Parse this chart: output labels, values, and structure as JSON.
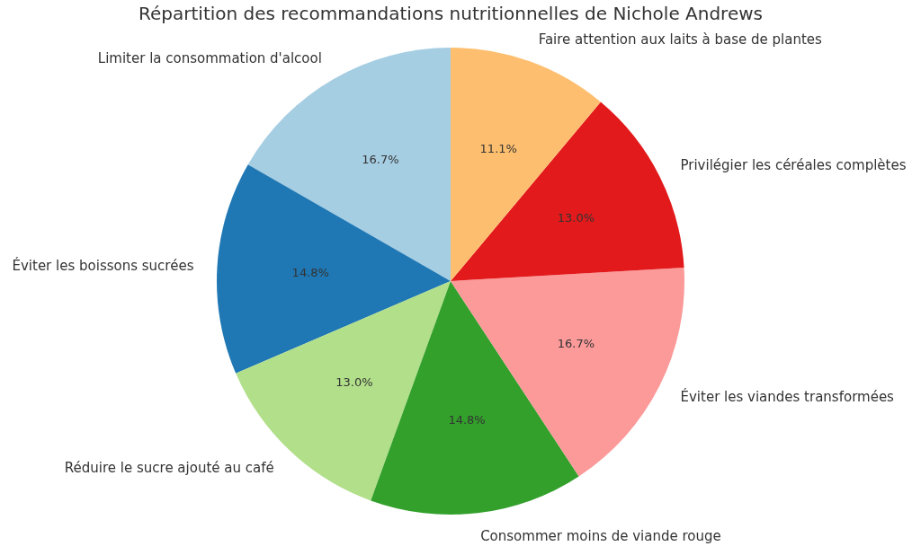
{
  "chart_data": {
    "type": "pie",
    "title": "Répartition des recommandations nutritionnelles de Nichole Andrews",
    "categories": [
      "Limiter la consommation d'alcool",
      "Éviter les boissons sucrées",
      "Réduire le sucre ajouté au café",
      "Consommer moins de viande rouge",
      "Éviter les viandes transformées",
      "Privilégier les céréales complètes",
      "Faire attention aux laits à base de plantes"
    ],
    "values": [
      16.7,
      14.8,
      13.0,
      14.8,
      16.7,
      13.0,
      11.1
    ],
    "colors": [
      "#a6cee3",
      "#1f78b4",
      "#b2df8a",
      "#33a02c",
      "#fb9a99",
      "#e31a1c",
      "#fdbf6f"
    ],
    "value_labels": [
      "16.7%",
      "14.8%",
      "13.0%",
      "14.8%",
      "16.7%",
      "13.0%",
      "11.1%"
    ],
    "legend": false
  }
}
